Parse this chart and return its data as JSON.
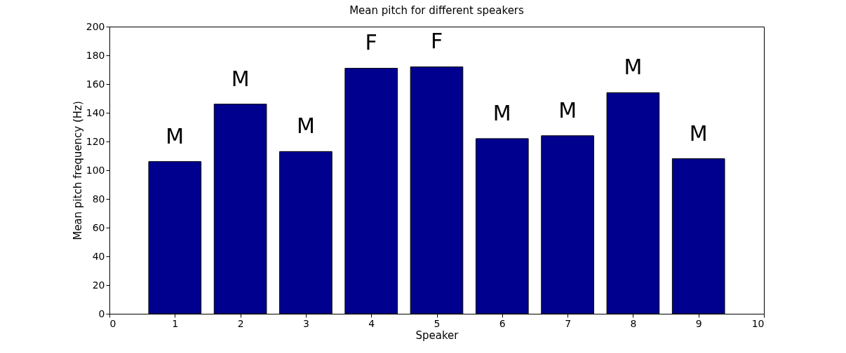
{
  "chart_data": {
    "type": "bar",
    "title": "Mean pitch for different speakers",
    "xlabel": "Speaker",
    "ylabel": "Mean pitch frequency (Hz)",
    "x": [
      1,
      2,
      3,
      4,
      5,
      6,
      7,
      8,
      9
    ],
    "values": [
      106,
      146,
      113,
      171,
      172,
      122,
      124,
      154,
      108
    ],
    "value_labels": [
      "M",
      "M",
      "M",
      "F",
      "F",
      "M",
      "M",
      "M",
      "M"
    ],
    "color": "#00008f",
    "xlim": [
      0,
      10
    ],
    "xticks": [
      0,
      1,
      2,
      3,
      4,
      5,
      6,
      7,
      8,
      9,
      10
    ],
    "ylim": [
      0,
      200
    ],
    "yticks": [
      0,
      20,
      40,
      60,
      80,
      100,
      120,
      140,
      160,
      180,
      200
    ],
    "grid": false
  }
}
